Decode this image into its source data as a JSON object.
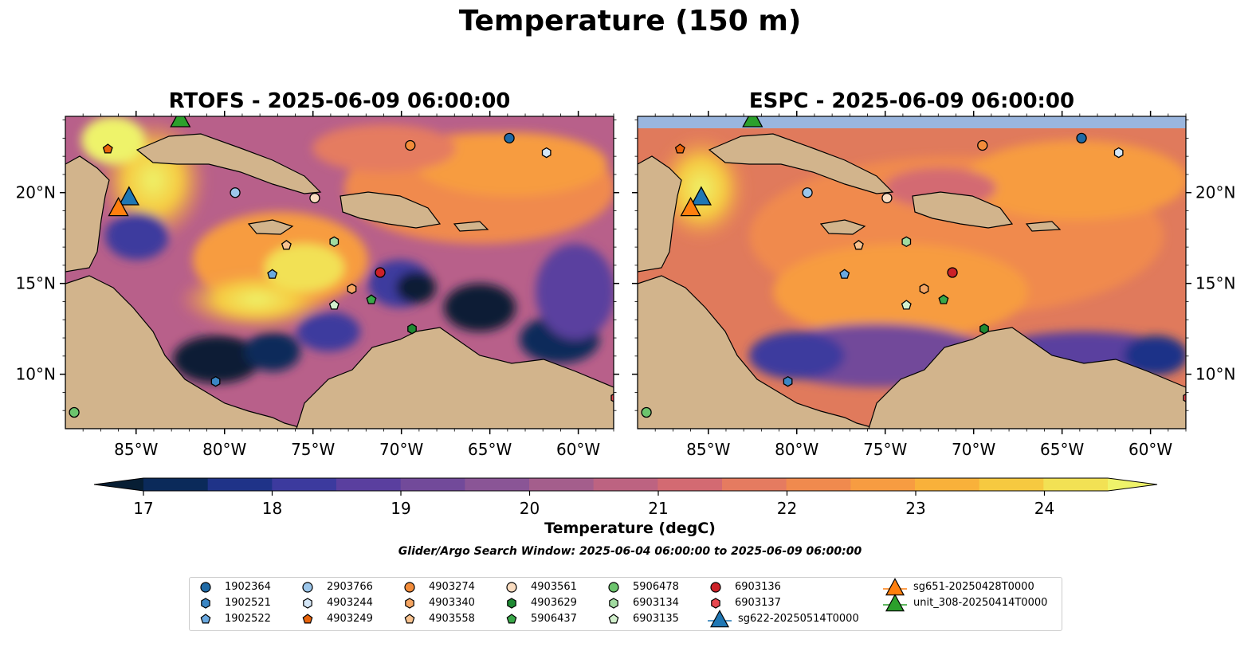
{
  "suptitle": "Temperature (150 m)",
  "panels": [
    {
      "title": "RTOFS - 2025-06-09 06:00:00",
      "model": "RTOFS"
    },
    {
      "title": "ESPC - 2025-06-09 06:00:00",
      "model": "ESPC"
    }
  ],
  "axes": {
    "lon_ticks": [
      "85°W",
      "80°W",
      "75°W",
      "70°W",
      "65°W",
      "60°W"
    ],
    "lat_ticks": [
      "20°N",
      "15°N",
      "10°N"
    ]
  },
  "colorbar": {
    "label": "Temperature (degC)",
    "ticks": [
      "17",
      "18",
      "19",
      "20",
      "21",
      "22",
      "23",
      "24"
    ],
    "range": [
      16.75,
      24.75
    ],
    "colors": [
      "#071e34",
      "#0b2a5a",
      "#1f3388",
      "#3c3a9e",
      "#5a3f9f",
      "#724a9a",
      "#8a5596",
      "#a45e8c",
      "#bd6381",
      "#d36a72",
      "#e57b60",
      "#f08a4e",
      "#f79c41",
      "#f9b13a",
      "#f6c940",
      "#f2e154",
      "#eef36a"
    ]
  },
  "window_label": "Glider/Argo Search Window: 2025-06-04 06:00:00 to 2025-06-09 06:00:00",
  "legend": {
    "items": [
      {
        "label": "1902364",
        "marker": "circle",
        "color": "#1f6aa6"
      },
      {
        "label": "1902521",
        "marker": "hexagon",
        "color": "#3b86c4"
      },
      {
        "label": "1902522",
        "marker": "pentagon",
        "color": "#6aa9e0"
      },
      {
        "label": "2903766",
        "marker": "circle",
        "color": "#9cc6ea"
      },
      {
        "label": "4903244",
        "marker": "hexagon",
        "color": "#d4e6f7"
      },
      {
        "label": "4903249",
        "marker": "pentagon",
        "color": "#e8640c"
      },
      {
        "label": "4903274",
        "marker": "circle",
        "color": "#f28c3a"
      },
      {
        "label": "4903340",
        "marker": "hexagon",
        "color": "#f5a562"
      },
      {
        "label": "4903558",
        "marker": "pentagon",
        "color": "#f8c28f"
      },
      {
        "label": "4903561",
        "marker": "circle",
        "color": "#fadcc0"
      },
      {
        "label": "4903629",
        "marker": "hexagon",
        "color": "#1f8a33"
      },
      {
        "label": "5906437",
        "marker": "pentagon",
        "color": "#3aa849"
      },
      {
        "label": "5906478",
        "marker": "circle",
        "color": "#6cc46d"
      },
      {
        "label": "6903134",
        "marker": "hexagon",
        "color": "#a1dba0"
      },
      {
        "label": "6903135",
        "marker": "pentagon",
        "color": "#d2f0cd"
      },
      {
        "label": "6903136",
        "marker": "circle",
        "color": "#cc2128"
      },
      {
        "label": "6903137",
        "marker": "hexagon",
        "color": "#e8474f"
      },
      {
        "label": "sg622-20250514T0000",
        "marker": "triangle",
        "color": "#1f77b4"
      },
      {
        "label": "sg651-20250428T0000",
        "marker": "triangle",
        "color": "#ff7f0e"
      },
      {
        "label": "unit_308-20250414T0000",
        "marker": "triangle",
        "color": "#2ca02c"
      }
    ]
  },
  "map_markers": [
    {
      "id": "1902364",
      "marker": "circle",
      "color": "#1f6aa6",
      "lon": -63.9,
      "lat": 23.0
    },
    {
      "id": "4903244",
      "marker": "hexagon",
      "color": "#d4e6f7",
      "lon": -61.8,
      "lat": 22.2
    },
    {
      "id": "4903274",
      "marker": "circle",
      "color": "#f28c3a",
      "lon": -69.5,
      "lat": 22.6
    },
    {
      "id": "4903249",
      "marker": "pentagon",
      "color": "#e8640c",
      "lon": -86.6,
      "lat": 22.4
    },
    {
      "id": "2903766",
      "marker": "circle",
      "color": "#9cc6ea",
      "lon": -79.4,
      "lat": 20.0
    },
    {
      "id": "4903561",
      "marker": "circle",
      "color": "#fadcc0",
      "lon": -74.9,
      "lat": 19.7
    },
    {
      "id": "4903558",
      "marker": "pentagon",
      "color": "#f8c28f",
      "lon": -76.5,
      "lat": 17.1
    },
    {
      "id": "6903134",
      "marker": "hexagon",
      "color": "#a1dba0",
      "lon": -73.8,
      "lat": 17.3
    },
    {
      "id": "1902522",
      "marker": "pentagon",
      "color": "#6aa9e0",
      "lon": -77.3,
      "lat": 15.5
    },
    {
      "id": "4903340",
      "marker": "hexagon",
      "color": "#f5a562",
      "lon": -72.8,
      "lat": 14.7
    },
    {
      "id": "6903136",
      "marker": "circle",
      "color": "#cc2128",
      "lon": -71.2,
      "lat": 15.6
    },
    {
      "id": "5906437",
      "marker": "pentagon",
      "color": "#3aa849",
      "lon": -71.7,
      "lat": 14.1
    },
    {
      "id": "6903135",
      "marker": "pentagon",
      "color": "#d2f0cd",
      "lon": -73.8,
      "lat": 13.8
    },
    {
      "id": "4903629",
      "marker": "hexagon",
      "color": "#1f8a33",
      "lon": -69.4,
      "lat": 12.5
    },
    {
      "id": "1902521",
      "marker": "hexagon",
      "color": "#3b86c4",
      "lon": -80.5,
      "lat": 9.6
    },
    {
      "id": "5906478",
      "marker": "circle",
      "color": "#6cc46d",
      "lon": -88.5,
      "lat": 7.9
    },
    {
      "id": "6903137",
      "marker": "hexagon",
      "color": "#e8474f",
      "lon": -57.9,
      "lat": 8.7
    },
    {
      "id": "sg622-20250514T0000",
      "marker": "triangle",
      "color": "#1f77b4",
      "lon": -85.4,
      "lat": 19.7
    },
    {
      "id": "sg651-20250428T0000",
      "marker": "triangle",
      "color": "#ff7f0e",
      "lon": -86.0,
      "lat": 19.1
    },
    {
      "id": "unit_308-20250414T0000",
      "marker": "triangle",
      "color": "#2ca02c",
      "lon": -82.5,
      "lat": 24.0
    }
  ],
  "extent": {
    "lon": [
      -89,
      -58
    ],
    "lat": [
      7,
      24.2
    ]
  }
}
